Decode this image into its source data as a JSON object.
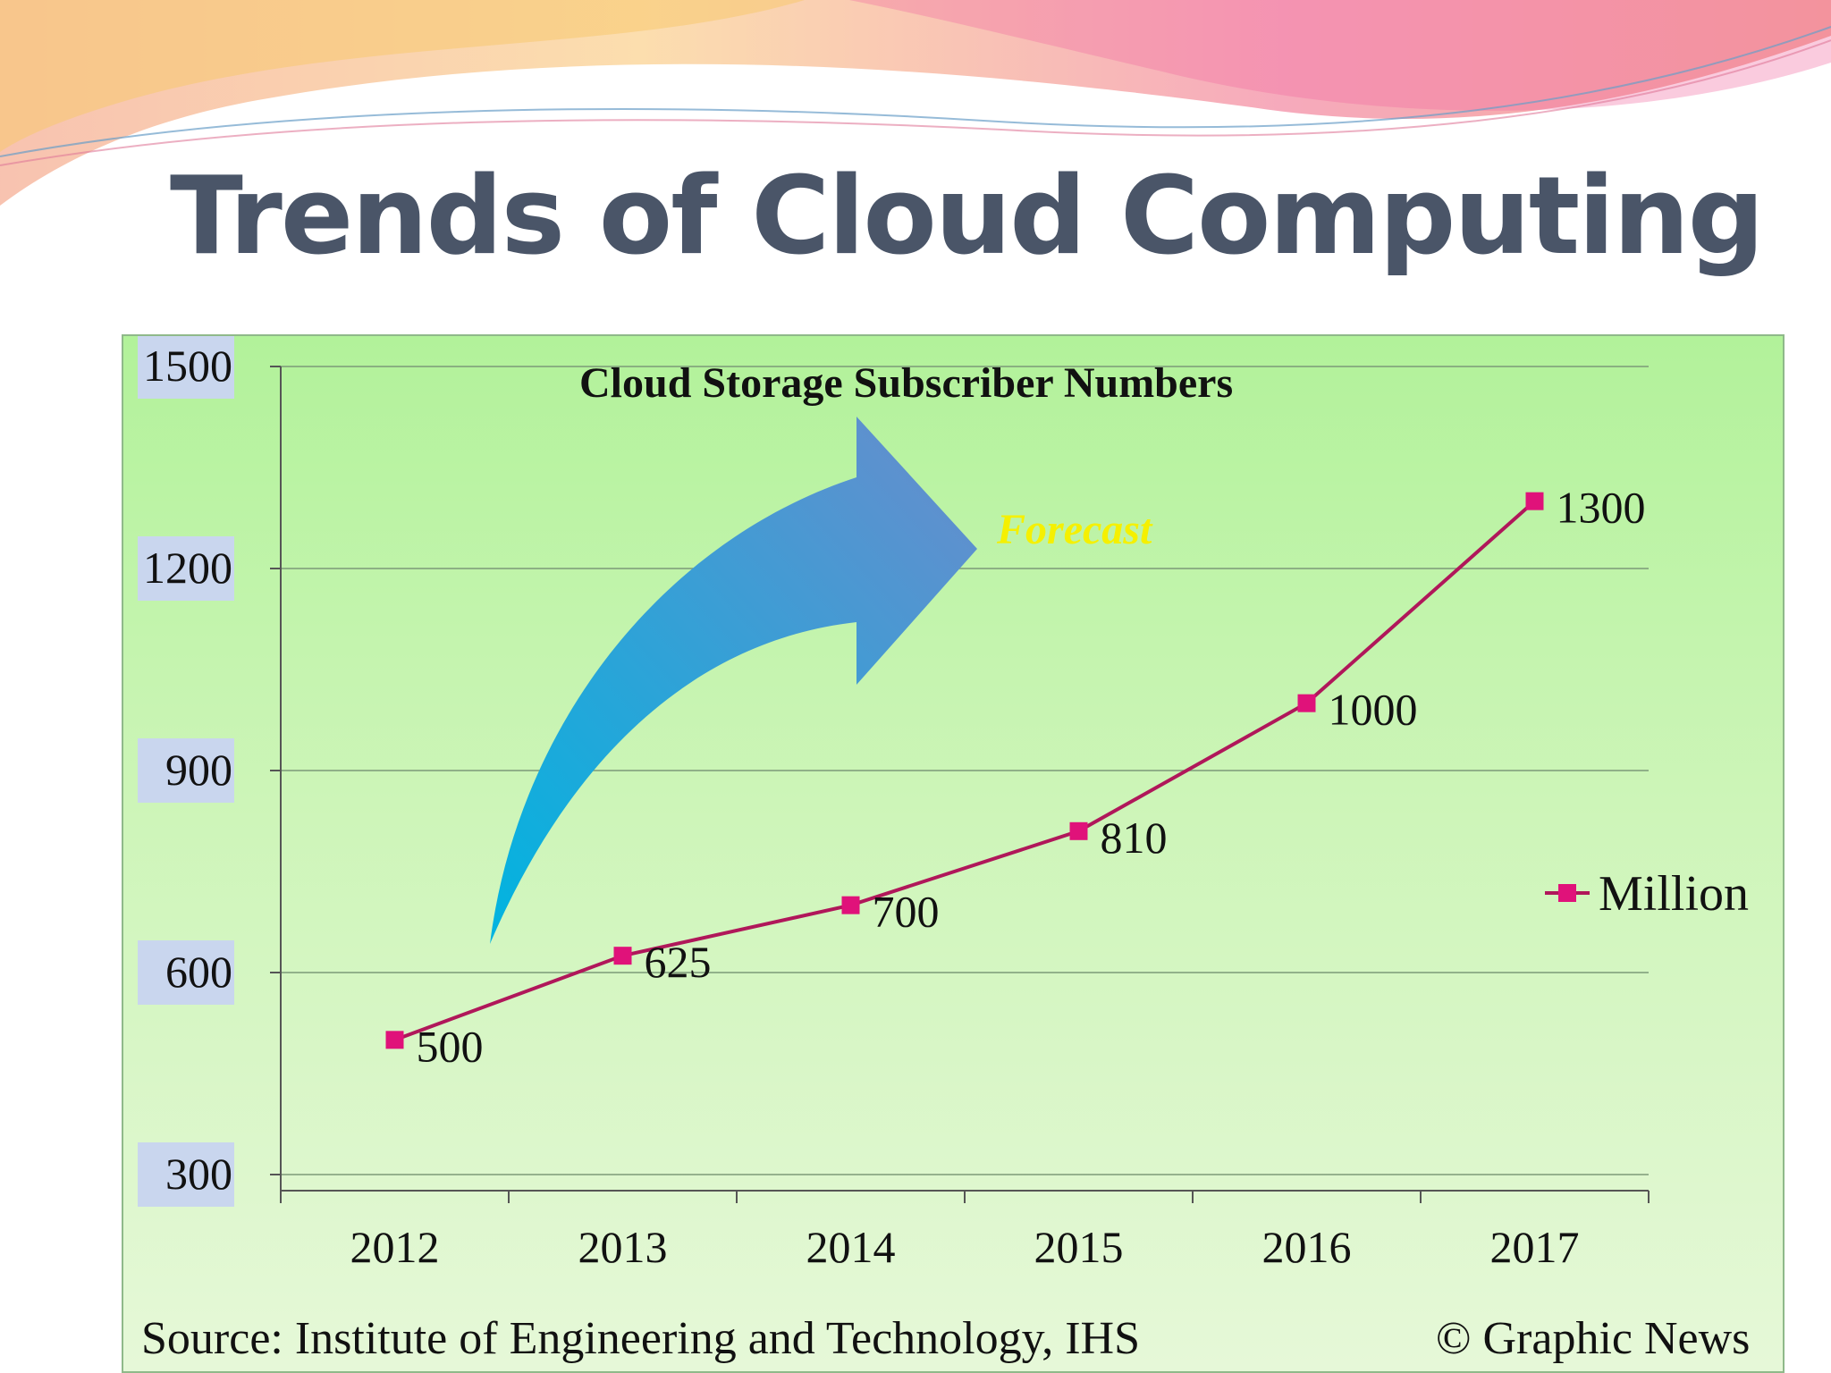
{
  "slide": {
    "title": "Trends of Cloud Computing"
  },
  "chart_data": {
    "type": "line",
    "title": "Cloud Storage Subscriber Numbers",
    "annotation": "Forecast",
    "categories": [
      "2012",
      "2013",
      "2014",
      "2015",
      "2016",
      "2017"
    ],
    "series": [
      {
        "name": "Million",
        "values": [
          500,
          625,
          700,
          810,
          1000,
          1300
        ]
      }
    ],
    "ylim": [
      300,
      1500
    ],
    "yticks": [
      300,
      600,
      900,
      1200,
      1500
    ],
    "xlabel": "",
    "ylabel": "",
    "grid": "horizontal",
    "legend_position": "right",
    "series_color": "#e0127a",
    "line_color": "#b0175a",
    "source": "Source: Institute of Engineering and Technology, IHS",
    "credit": "© Graphic News"
  }
}
